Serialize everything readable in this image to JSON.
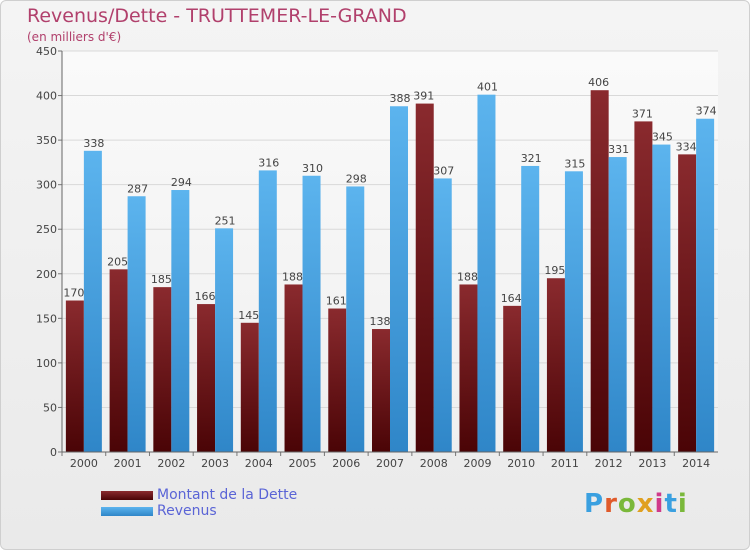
{
  "chart_data": {
    "type": "bar",
    "title": "Revenus/Dette - TRUTTEMER-LE-GRAND",
    "subtitle": "(en milliers d'€)",
    "categories": [
      "2000",
      "2001",
      "2002",
      "2003",
      "2004",
      "2005",
      "2006",
      "2007",
      "2008",
      "2009",
      "2010",
      "2011",
      "2012",
      "2013",
      "2014"
    ],
    "series": [
      {
        "name": "Montant de la Dette",
        "color": "#7a1e22",
        "values": [
          170,
          205,
          185,
          166,
          145,
          188,
          161,
          138,
          391,
          188,
          164,
          195,
          406,
          371,
          334
        ]
      },
      {
        "name": "Revenus",
        "color": "#4aa3e2",
        "values": [
          338,
          287,
          294,
          251,
          316,
          310,
          298,
          388,
          307,
          401,
          321,
          315,
          331,
          345,
          374
        ]
      }
    ],
    "ylim": [
      0,
      450
    ],
    "yticks": [
      0,
      50,
      100,
      150,
      200,
      250,
      300,
      350,
      400,
      450
    ],
    "grid": true,
    "legend_position": "bottom-left"
  },
  "logo": {
    "text": "Proxiti"
  }
}
